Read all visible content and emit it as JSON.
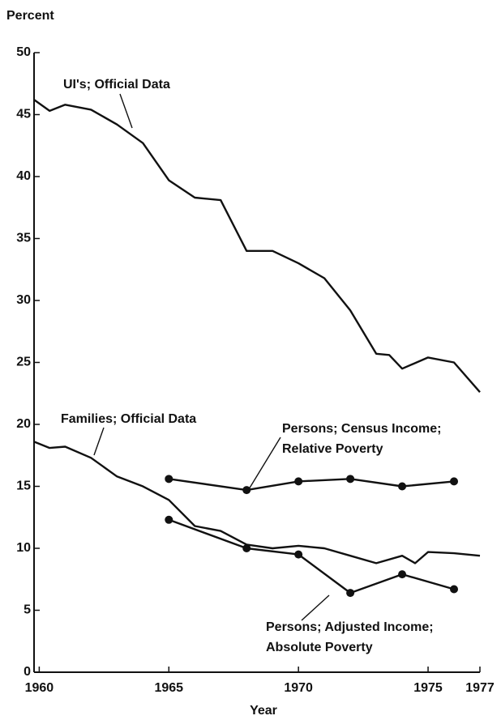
{
  "chart_data": {
    "type": "line",
    "y_label": "Percent",
    "x_label": "Year",
    "xlim": [
      1959.8,
      1977
    ],
    "ylim": [
      0,
      50
    ],
    "xticks": [
      1960,
      1965,
      1970,
      1975,
      1977
    ],
    "yticks": [
      0,
      5,
      10,
      15,
      20,
      25,
      30,
      35,
      40,
      45,
      50
    ],
    "grid": false,
    "series": [
      {
        "label_lines": [
          "UI's; Official Data"
        ],
        "color": "#111111",
        "markers": false,
        "x": [
          1959.8,
          1960.4,
          1961,
          1962,
          1963,
          1964,
          1965,
          1966,
          1967,
          1968,
          1969,
          1970,
          1971,
          1972,
          1973,
          1973.5,
          1974,
          1975,
          1976,
          1977
        ],
        "values": [
          46.2,
          45.3,
          45.8,
          45.4,
          44.2,
          42.7,
          39.7,
          38.3,
          38.1,
          34.0,
          34.0,
          33.0,
          31.8,
          29.2,
          25.7,
          25.6,
          24.5,
          25.4,
          25.0,
          22.6
        ]
      },
      {
        "label_lines": [
          "Families; Official Data"
        ],
        "color": "#111111",
        "markers": false,
        "x": [
          1959.8,
          1960.4,
          1961,
          1962,
          1963,
          1964,
          1965,
          1966,
          1967,
          1968,
          1969,
          1970,
          1971,
          1972,
          1973,
          1974,
          1974.5,
          1975,
          1976,
          1977
        ],
        "values": [
          18.6,
          18.1,
          18.2,
          17.3,
          15.8,
          15.0,
          13.9,
          11.8,
          11.4,
          10.3,
          10.0,
          10.2,
          10.0,
          9.4,
          8.8,
          9.4,
          8.8,
          9.7,
          9.6,
          9.4
        ]
      },
      {
        "label_lines": [
          "Persons; Census Income;",
          "Relative Poverty"
        ],
        "color": "#111111",
        "markers": true,
        "x": [
          1965,
          1968,
          1970,
          1972,
          1974,
          1976
        ],
        "values": [
          15.6,
          14.7,
          15.4,
          15.6,
          15.0,
          15.4
        ]
      },
      {
        "label_lines": [
          "Persons; Adjusted Income;",
          "Absolute Poverty"
        ],
        "color": "#111111",
        "markers": true,
        "x": [
          1965,
          1968,
          1970,
          1972,
          1974,
          1976
        ],
        "values": [
          12.3,
          10.0,
          9.5,
          6.4,
          7.9,
          6.7
        ]
      }
    ]
  }
}
